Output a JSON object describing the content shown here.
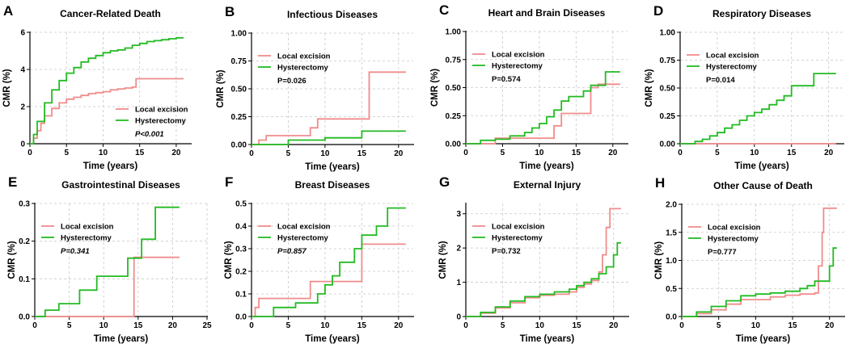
{
  "figure": {
    "background": "#ffffff"
  },
  "colors": {
    "local": "#f08c8c",
    "hyst": "#22bb22",
    "grid": "#c8c8c8",
    "axis": "#000000"
  },
  "chart_data": [
    {
      "type": "line",
      "letter": "A",
      "title": "Cancer-Related Death",
      "xlabel": "Time (years)",
      "ylabel": "CMR (%)",
      "xlim": [
        0,
        22
      ],
      "ylim": [
        0,
        6
      ],
      "xticks": [
        0,
        5,
        10,
        15,
        20
      ],
      "yticks": [
        0,
        2,
        4,
        6
      ],
      "legend": "bottom-right",
      "pvalue": "P<0.001",
      "p_italic": true,
      "series": [
        {
          "name": "Local excision",
          "x": [
            0,
            0.5,
            1,
            1.5,
            2,
            3,
            4,
            5,
            6,
            7,
            8,
            9,
            10,
            11,
            12,
            13,
            14,
            14.5,
            15,
            17,
            21
          ],
          "y": [
            0,
            0.3,
            0.7,
            1.1,
            1.5,
            1.9,
            2.2,
            2.4,
            2.5,
            2.6,
            2.7,
            2.75,
            2.8,
            2.9,
            2.95,
            3.0,
            3.05,
            3.5,
            3.5,
            3.5,
            3.5
          ]
        },
        {
          "name": "Hysterectomy",
          "x": [
            0,
            0.5,
            1,
            2,
            3,
            4,
            5,
            6,
            7,
            8,
            9,
            10,
            11,
            12,
            13,
            14,
            15,
            16,
            17,
            18,
            19,
            20,
            21
          ],
          "y": [
            0,
            0.5,
            1.2,
            2.2,
            2.9,
            3.4,
            3.8,
            4.1,
            4.4,
            4.6,
            4.75,
            4.9,
            5.0,
            5.05,
            5.15,
            5.3,
            5.4,
            5.5,
            5.55,
            5.6,
            5.65,
            5.7,
            5.7
          ]
        }
      ]
    },
    {
      "type": "line",
      "letter": "B",
      "title": "Infectious Diseases",
      "xlabel": "Time (years)",
      "ylabel": "CMR (%)",
      "xlim": [
        0,
        22
      ],
      "ylim": [
        0,
        1
      ],
      "xticks": [
        0,
        5,
        10,
        15,
        20
      ],
      "yticks": [
        0,
        0.25,
        0.5,
        0.75,
        1.0
      ],
      "yticklabels": [
        "0.00",
        "0.25",
        "0.50",
        "0.75",
        "1.00"
      ],
      "legend": "top-left",
      "pvalue": "P=0.026",
      "p_italic": false,
      "series": [
        {
          "name": "Local excision",
          "x": [
            0,
            1,
            2,
            7,
            8,
            9,
            10,
            15.5,
            16,
            16,
            21
          ],
          "y": [
            0,
            0.04,
            0.08,
            0.08,
            0.15,
            0.23,
            0.23,
            0.23,
            0.42,
            0.65,
            0.65
          ]
        },
        {
          "name": "Hysterectomy",
          "x": [
            0,
            5,
            10,
            15,
            21
          ],
          "y": [
            0,
            0.04,
            0.06,
            0.12,
            0.12
          ]
        }
      ]
    },
    {
      "type": "line",
      "letter": "C",
      "title": "Heart and Brain Diseases",
      "xlabel": "Time (years)",
      "ylabel": "CMR (%)",
      "xlim": [
        0,
        22
      ],
      "ylim": [
        0,
        1
      ],
      "xticks": [
        0,
        5,
        10,
        15,
        20
      ],
      "yticks": [
        0,
        0.25,
        0.5,
        0.75,
        1.0
      ],
      "yticklabels": [
        "0.00",
        "0.25",
        "0.50",
        "0.75",
        "1.00"
      ],
      "legend": "top-left",
      "pvalue": "P=0.574",
      "p_italic": false,
      "series": [
        {
          "name": "Local excision",
          "x": [
            0,
            4,
            6,
            11,
            12,
            13,
            16,
            17,
            18,
            21
          ],
          "y": [
            0,
            0.05,
            0.05,
            0.05,
            0.16,
            0.27,
            0.27,
            0.5,
            0.53,
            0.53
          ]
        },
        {
          "name": "Hysterectomy",
          "x": [
            0,
            2,
            4,
            6,
            8,
            9,
            10,
            11,
            12,
            13,
            14,
            15,
            16,
            17,
            19,
            21
          ],
          "y": [
            0,
            0.03,
            0.04,
            0.07,
            0.1,
            0.14,
            0.18,
            0.24,
            0.3,
            0.38,
            0.42,
            0.42,
            0.47,
            0.52,
            0.64,
            0.64
          ]
        }
      ]
    },
    {
      "type": "line",
      "letter": "D",
      "title": "Respiratory Diseases",
      "xlabel": "Time (years)",
      "ylabel": "CMR (%)",
      "xlim": [
        0,
        22
      ],
      "ylim": [
        0,
        1
      ],
      "xticks": [
        0,
        5,
        10,
        15,
        20
      ],
      "yticks": [
        0,
        0.25,
        0.5,
        0.75,
        1.0
      ],
      "yticklabels": [
        "0.00",
        "0.25",
        "0.50",
        "0.75",
        "1.00"
      ],
      "legend": "top-left",
      "pvalue": "P=0.014",
      "p_italic": false,
      "series": [
        {
          "name": "Local excision",
          "x": [
            0,
            21
          ],
          "y": [
            0,
            0
          ]
        },
        {
          "name": "Hysterectomy",
          "x": [
            0,
            2,
            3,
            4,
            5,
            6,
            7,
            8,
            9,
            10,
            11,
            12,
            13,
            14,
            15,
            16,
            18,
            21
          ],
          "y": [
            0,
            0.02,
            0.04,
            0.07,
            0.1,
            0.14,
            0.17,
            0.21,
            0.25,
            0.28,
            0.31,
            0.35,
            0.39,
            0.43,
            0.52,
            0.52,
            0.63,
            0.63
          ]
        }
      ]
    },
    {
      "type": "line",
      "letter": "E",
      "title": "Gastrointestinal Diseases",
      "xlabel": "Time (years)",
      "ylabel": "CMR (%)",
      "xlim": [
        0,
        25
      ],
      "ylim": [
        0,
        0.3
      ],
      "xticks": [
        0,
        5,
        10,
        15,
        20,
        25
      ],
      "yticks": [
        0,
        0.1,
        0.2,
        0.3
      ],
      "yticklabels": [
        "0.0",
        "0.1",
        "0.2",
        "0.3"
      ],
      "legend": "top-left",
      "pvalue": "P=0.341",
      "p_italic": true,
      "series": [
        {
          "name": "Local excision",
          "x": [
            0,
            14.2,
            14.4,
            21
          ],
          "y": [
            0,
            0,
            0.157,
            0.157
          ]
        },
        {
          "name": "Hysterectomy",
          "x": [
            0,
            1.5,
            3.5,
            6.5,
            9,
            13.5,
            15.5,
            17.5,
            21
          ],
          "y": [
            0,
            0.017,
            0.034,
            0.07,
            0.107,
            0.155,
            0.205,
            0.29,
            0.29
          ]
        }
      ]
    },
    {
      "type": "line",
      "letter": "F",
      "title": "Breast Diseases",
      "xlabel": "Time (years)",
      "ylabel": "CMR (%)",
      "xlim": [
        0,
        22
      ],
      "ylim": [
        0,
        0.5
      ],
      "xticks": [
        0,
        5,
        10,
        15,
        20
      ],
      "yticks": [
        0,
        0.1,
        0.2,
        0.3,
        0.4,
        0.5
      ],
      "yticklabels": [
        "0.0",
        "0.1",
        "0.2",
        "0.3",
        "0.4",
        "0.5"
      ],
      "legend": "top-left",
      "pvalue": "P=0.857",
      "p_italic": true,
      "series": [
        {
          "name": "Local excision",
          "x": [
            0,
            0.5,
            1,
            7.5,
            8,
            14.5,
            15,
            21
          ],
          "y": [
            0,
            0.04,
            0.08,
            0.08,
            0.155,
            0.155,
            0.32,
            0.32
          ]
        },
        {
          "name": "Hysterectomy",
          "x": [
            0,
            3,
            6,
            9,
            10,
            11,
            12,
            13,
            14,
            15,
            16,
            17,
            18.5,
            21
          ],
          "y": [
            0,
            0.04,
            0.06,
            0.1,
            0.14,
            0.18,
            0.24,
            0.24,
            0.3,
            0.36,
            0.36,
            0.4,
            0.48,
            0.48
          ]
        }
      ]
    },
    {
      "type": "line",
      "letter": "G",
      "title": "External Injury",
      "xlabel": "Time (years)",
      "ylabel": "CMR (%)",
      "xlim": [
        0,
        22
      ],
      "ylim": [
        0,
        3.3
      ],
      "xticks": [
        0,
        5,
        10,
        15,
        20
      ],
      "yticks": [
        0,
        1,
        2,
        3
      ],
      "legend": "top-left",
      "pvalue": "P=0.732",
      "p_italic": false,
      "series": [
        {
          "name": "Local excision",
          "x": [
            0,
            2,
            4,
            6,
            8,
            10,
            12,
            14,
            15,
            16,
            17,
            18,
            18.5,
            19,
            19.5,
            21
          ],
          "y": [
            0,
            0.1,
            0.25,
            0.4,
            0.55,
            0.62,
            0.65,
            0.72,
            0.85,
            0.95,
            1.05,
            1.3,
            1.8,
            2.6,
            3.15,
            3.15
          ]
        },
        {
          "name": "Hysterectomy",
          "x": [
            0,
            2,
            4,
            6,
            8,
            10,
            12,
            14,
            15,
            16,
            17,
            18,
            19,
            20,
            20.5,
            21
          ],
          "y": [
            0,
            0.12,
            0.28,
            0.45,
            0.58,
            0.65,
            0.72,
            0.8,
            0.9,
            1.0,
            1.1,
            1.25,
            1.45,
            1.8,
            2.15,
            2.15
          ]
        }
      ]
    },
    {
      "type": "line",
      "letter": "H",
      "title": "Other Cause of Death",
      "xlabel": "Time (years)",
      "ylabel": "CMR (%)",
      "xlim": [
        0,
        22
      ],
      "ylim": [
        0,
        2
      ],
      "xticks": [
        0,
        5,
        10,
        15,
        20
      ],
      "yticks": [
        0,
        0.5,
        1.0,
        1.5,
        2.0
      ],
      "yticklabels": [
        "0.0",
        "0.5",
        "1.0",
        "1.5",
        "2.0"
      ],
      "legend": "top-left",
      "pvalue": "P=0.777",
      "p_italic": false,
      "series": [
        {
          "name": "Local excision",
          "x": [
            0,
            2,
            4,
            6,
            8,
            12,
            14,
            16,
            18,
            18.5,
            19,
            19.2,
            21
          ],
          "y": [
            0,
            0.05,
            0.12,
            0.22,
            0.3,
            0.35,
            0.38,
            0.4,
            0.42,
            0.9,
            1.5,
            1.93,
            1.93
          ]
        },
        {
          "name": "Hysterectomy",
          "x": [
            0,
            2,
            4,
            6,
            8,
            10,
            12,
            14,
            16,
            17,
            18,
            19,
            20,
            20.5,
            21
          ],
          "y": [
            0,
            0.08,
            0.18,
            0.28,
            0.37,
            0.4,
            0.42,
            0.45,
            0.5,
            0.55,
            0.63,
            0.63,
            0.9,
            1.22,
            1.22
          ]
        }
      ]
    }
  ]
}
